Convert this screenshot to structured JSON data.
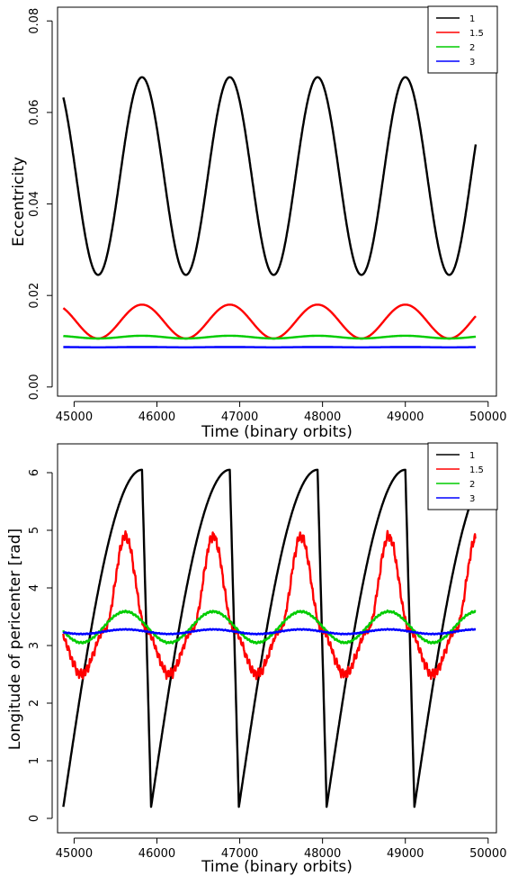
{
  "chart_data": [
    {
      "type": "line",
      "title": "",
      "xlabel": "Time (binary orbits)",
      "ylabel": "Eccentricity",
      "xlim": [
        44800,
        50100
      ],
      "ylim": [
        -0.002,
        0.083
      ],
      "xticks": [
        45000,
        46000,
        47000,
        48000,
        49000,
        50000
      ],
      "yticks": [
        0.0,
        0.02,
        0.04,
        0.06,
        0.08
      ],
      "ytick_labels": [
        "0.00",
        "0.02",
        "0.04",
        "0.06",
        "0.08"
      ],
      "grid": false,
      "legend_position": "top-right",
      "series": [
        {
          "name": "1",
          "color": "#000000",
          "model": {
            "kind": "sine",
            "x0": 44870,
            "x1": 49850,
            "mean": 0.0461,
            "amp": 0.0216,
            "peak_x": 45820,
            "period": 1060
          },
          "x": [
            44870,
            45100,
            45320,
            45550,
            45820,
            46100,
            46380,
            46650,
            46880,
            47150,
            47440,
            47700,
            47940,
            48200,
            48500,
            48760,
            49000,
            49300,
            49560,
            49850
          ],
          "values": [
            0.064,
            0.045,
            0.0245,
            0.04,
            0.0677,
            0.047,
            0.0245,
            0.046,
            0.0677,
            0.046,
            0.0245,
            0.046,
            0.0677,
            0.046,
            0.0245,
            0.046,
            0.0677,
            0.04,
            0.0245,
            0.0515
          ]
        },
        {
          "name": "1.5",
          "color": "#ff0000",
          "model": {
            "kind": "sine",
            "x0": 44870,
            "x1": 49850,
            "mean": 0.0143,
            "amp": 0.0037,
            "peak_x": 45820,
            "period": 1060
          },
          "x": [
            44870,
            45300,
            45820,
            46350,
            46880,
            47410,
            47940,
            48470,
            49000,
            49530,
            49850
          ],
          "values": [
            0.017,
            0.0106,
            0.018,
            0.0106,
            0.018,
            0.0106,
            0.018,
            0.0106,
            0.018,
            0.0106,
            0.015
          ]
        },
        {
          "name": "2",
          "color": "#00cc00",
          "model": {
            "kind": "sine",
            "x0": 44870,
            "x1": 49850,
            "mean": 0.0109,
            "amp": 0.0003,
            "peak_x": 45820,
            "period": 1060
          },
          "x": [
            44870,
            45820,
            46880,
            47940,
            49000,
            49850
          ],
          "values": [
            0.0111,
            0.0112,
            0.0112,
            0.0112,
            0.0112,
            0.0109
          ]
        },
        {
          "name": "3",
          "color": "#0000ff",
          "model": {
            "kind": "sine",
            "x0": 44870,
            "x1": 49850,
            "mean": 0.0087,
            "amp": 3e-05,
            "peak_x": 45820,
            "period": 1060
          },
          "x": [
            44870,
            49850
          ],
          "values": [
            0.0087,
            0.0087
          ]
        }
      ]
    },
    {
      "type": "line",
      "title": "",
      "xlabel": "Time (binary orbits)",
      "ylabel": "Longitude of pericenter [rad]",
      "xlim": [
        44800,
        50100
      ],
      "ylim": [
        -0.25,
        6.5
      ],
      "xticks": [
        45000,
        46000,
        47000,
        48000,
        49000,
        50000
      ],
      "yticks": [
        0,
        1,
        2,
        3,
        4,
        5,
        6
      ],
      "ytick_labels": [
        "0",
        "1",
        "2",
        "3",
        "4",
        "5",
        "6"
      ],
      "grid": false,
      "legend_position": "top-right",
      "series": [
        {
          "name": "1",
          "color": "#000000",
          "model": {
            "kind": "sawtooth",
            "x0": 44870,
            "x1": 49850,
            "first_start": 44870,
            "period": 1060,
            "low": 0.2,
            "high": 6.05,
            "rise": 950
          },
          "x": [
            44870,
            45200,
            45500,
            45820,
            45900,
            45960,
            46300,
            46600,
            46880,
            46960,
            47020,
            47350,
            47660,
            47940,
            48020,
            48080,
            48400,
            48700,
            49000,
            49080,
            49140,
            49500,
            49850
          ],
          "values": [
            0.2,
            2.2,
            4.3,
            6.05,
            0.8,
            0.25,
            2.3,
            4.3,
            6.08,
            0.8,
            0.25,
            2.3,
            4.3,
            6.1,
            0.8,
            0.2,
            2.3,
            4.3,
            6.05,
            0.8,
            0.2,
            2.6,
            5.1
          ]
        },
        {
          "name": "1.5",
          "color": "#ff0000",
          "model": {
            "kind": "peaky",
            "x0": 44870,
            "x1": 49850,
            "period": 1060,
            "peak_x": 45620,
            "low": 2.5,
            "high": 4.9,
            "noise": 0.08
          },
          "x": [
            44870,
            45020,
            45300,
            45620,
            45900,
            46120,
            46400,
            46700,
            47000,
            47180,
            47500,
            47800,
            48050,
            48250,
            48550,
            48850,
            49100,
            49300,
            49600,
            49850
          ],
          "values": [
            3.1,
            2.5,
            3.2,
            4.9,
            3.2,
            2.5,
            3.3,
            4.95,
            3.2,
            2.45,
            3.3,
            4.85,
            3.2,
            2.5,
            3.3,
            4.8,
            3.2,
            2.5,
            3.3,
            4.65
          ]
        },
        {
          "name": "2",
          "color": "#00cc00",
          "model": {
            "kind": "sine",
            "x0": 44870,
            "x1": 49850,
            "mean": 3.32,
            "amp": 0.27,
            "peak_x": 45620,
            "period": 1060,
            "noise": 0.02
          },
          "x": [
            44870,
            45090,
            45620,
            46150,
            46680,
            47210,
            47740,
            48270,
            48800,
            49330,
            49850
          ],
          "values": [
            3.2,
            3.05,
            3.6,
            3.05,
            3.6,
            3.05,
            3.6,
            3.05,
            3.6,
            3.05,
            3.55
          ]
        },
        {
          "name": "3",
          "color": "#0000ff",
          "model": {
            "kind": "sine",
            "x0": 44870,
            "x1": 49850,
            "mean": 3.24,
            "amp": 0.04,
            "peak_x": 45620,
            "period": 1060,
            "noise": 0.01
          },
          "x": [
            44870,
            45620,
            46150,
            46680,
            47210,
            47740,
            48270,
            48800,
            49330,
            49850
          ],
          "values": [
            3.22,
            3.27,
            3.21,
            3.27,
            3.2,
            3.26,
            3.2,
            3.27,
            3.21,
            3.27
          ]
        }
      ]
    }
  ]
}
